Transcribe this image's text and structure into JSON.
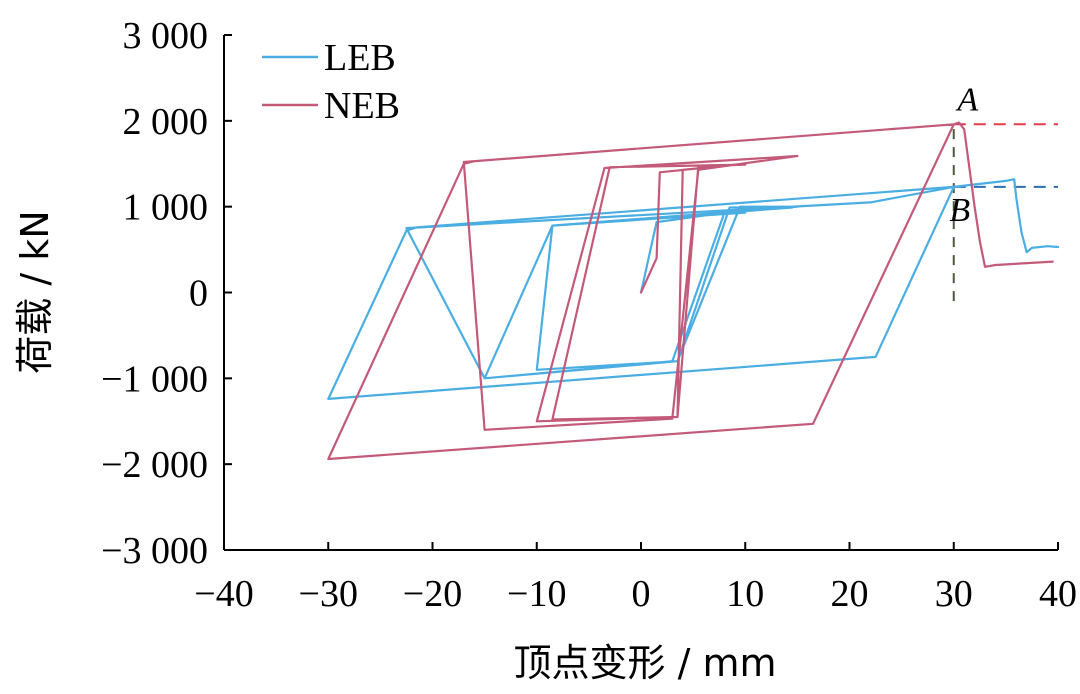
{
  "chart_data": {
    "type": "line",
    "title": "",
    "xlabel": "顶点变形 / mm",
    "ylabel": "荷载 / kN",
    "xlim": [
      -40,
      40
    ],
    "ylim": [
      -3000,
      3000
    ],
    "x_ticks": [
      -40,
      -30,
      -20,
      -10,
      0,
      10,
      20,
      30,
      40
    ],
    "x_tick_labels": [
      "−40",
      "−30",
      "−20",
      "−10",
      "0",
      "10",
      "20",
      "30",
      "40"
    ],
    "y_ticks": [
      3000,
      2000,
      1000,
      0,
      -1000,
      -2000,
      -3000
    ],
    "y_tick_labels": [
      "3 000",
      "2 000",
      "1 000",
      "0",
      "−1 000",
      "−2 000",
      "−3 000"
    ],
    "grid": false,
    "legend_position": "top-left",
    "series": [
      {
        "name": "LEB",
        "color": "#4aaee3",
        "points": [
          [
            0,
            0
          ],
          [
            1.5,
            820
          ],
          [
            8,
            930
          ],
          [
            14.5,
            990
          ],
          [
            8.5,
            990
          ],
          [
            3.5,
            -800
          ],
          [
            -10,
            -900
          ],
          [
            -8.5,
            780
          ],
          [
            10,
            930
          ],
          [
            8,
            930
          ],
          [
            3,
            -800
          ],
          [
            -15,
            -1000
          ],
          [
            -8.5,
            780
          ],
          [
            15,
            1000
          ],
          [
            9.5,
            1000
          ],
          [
            3.5,
            -800
          ],
          [
            -15,
            -1000
          ],
          [
            -22.5,
            750
          ],
          [
            22,
            1050
          ],
          [
            30,
            1230
          ],
          [
            22.5,
            -750
          ],
          [
            -30,
            -1240
          ],
          [
            -22.5,
            720
          ],
          [
            -21.5,
            760
          ],
          [
            30,
            1230
          ],
          [
            35,
            1300
          ],
          [
            35.8,
            1320
          ],
          [
            36,
            1100
          ],
          [
            36.5,
            700
          ],
          [
            37,
            470
          ],
          [
            37.5,
            520
          ],
          [
            39,
            540
          ],
          [
            40,
            530
          ]
        ]
      },
      {
        "name": "NEB",
        "color": "#c35a7a",
        "points": [
          [
            0,
            0
          ],
          [
            1.5,
            400
          ],
          [
            1.8,
            1400
          ],
          [
            9,
            1490
          ],
          [
            4,
            1430
          ],
          [
            3.5,
            -1450
          ],
          [
            -8.5,
            -1480
          ],
          [
            -3,
            1460
          ],
          [
            10,
            1490
          ],
          [
            5.5,
            1470
          ],
          [
            3.5,
            -1450
          ],
          [
            -10,
            -1500
          ],
          [
            -3.5,
            1450
          ],
          [
            15,
            1590
          ],
          [
            5.5,
            1430
          ],
          [
            3,
            -1470
          ],
          [
            -15,
            -1600
          ],
          [
            -17,
            1520
          ],
          [
            30,
            1960
          ],
          [
            16.5,
            -1530
          ],
          [
            -30,
            -1940
          ],
          [
            -17,
            1500
          ],
          [
            -16,
            1530
          ],
          [
            30,
            1960
          ],
          [
            30.5,
            1980
          ],
          [
            31,
            1900
          ],
          [
            32,
            1000
          ],
          [
            32.5,
            600
          ],
          [
            33,
            300
          ],
          [
            34,
            320
          ],
          [
            39.5,
            360
          ]
        ]
      }
    ],
    "annotations": [
      {
        "label": "A",
        "x": 30,
        "y": 1960
      },
      {
        "label": "B",
        "x": 30,
        "y": 1230
      }
    ],
    "reference_lines": [
      {
        "orientation": "horizontal",
        "y": 1960,
        "x_from": 30,
        "x_to": 40,
        "color": "#e23b4a",
        "style": "dashed"
      },
      {
        "orientation": "horizontal",
        "y": 1230,
        "x_from": 30,
        "x_to": 40,
        "color": "#2e6fb4",
        "style": "dashed"
      },
      {
        "orientation": "vertical",
        "x": 30,
        "y_from": -100,
        "y_to": 1960,
        "color": "#4a5a3a",
        "style": "dashed"
      }
    ]
  }
}
